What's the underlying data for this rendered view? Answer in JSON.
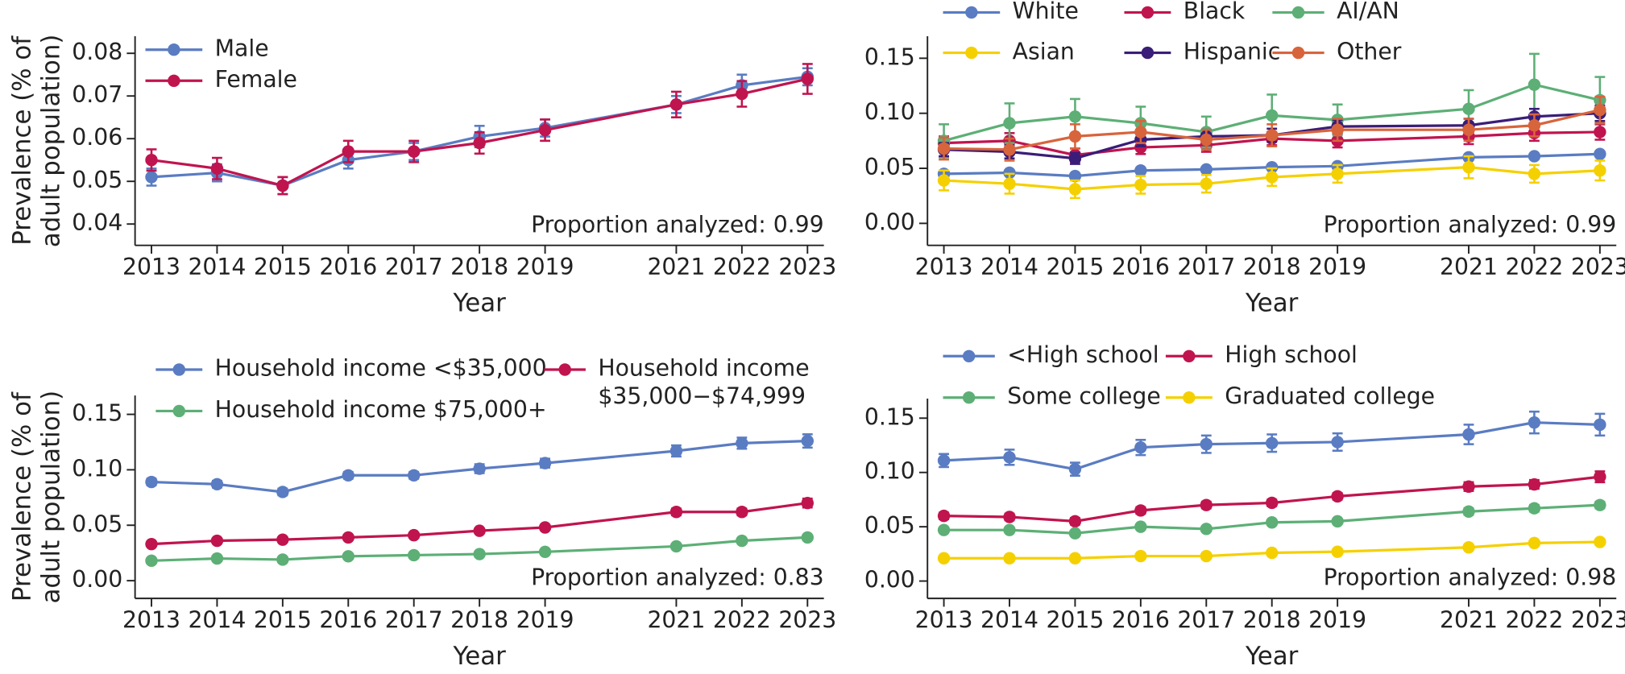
{
  "chart_data": [
    {
      "type": "line",
      "xlabel": "Year",
      "ylabel": [
        "Prevalence (% of",
        "adult population)"
      ],
      "annotation": "Proportion analyzed: 0.99",
      "x": [
        2013,
        2014,
        2015,
        2016,
        2017,
        2018,
        2019,
        2021,
        2022,
        2023
      ],
      "xlim": [
        2012.75,
        2023.25
      ],
      "xticks": [
        2013,
        2014,
        2015,
        2016,
        2017,
        2018,
        2019,
        2021,
        2022,
        2023
      ],
      "ylim": [
        0.035,
        0.084
      ],
      "yticks": [
        0.04,
        0.05,
        0.06,
        0.07,
        0.08
      ],
      "series": [
        {
          "name": "Male",
          "color": "#5a7cc2",
          "values": [
            0.051,
            0.052,
            0.049,
            0.055,
            0.057,
            0.0605,
            0.0625,
            0.068,
            0.0725,
            0.0745
          ],
          "errors": [
            0.002,
            0.002,
            0.002,
            0.002,
            0.002,
            0.0025,
            0.002,
            0.002,
            0.0025,
            0.002
          ]
        },
        {
          "name": "Female",
          "color": "#c0144f",
          "values": [
            0.055,
            0.053,
            0.049,
            0.057,
            0.057,
            0.059,
            0.062,
            0.068,
            0.0705,
            0.074
          ],
          "errors": [
            0.0025,
            0.0025,
            0.002,
            0.0025,
            0.0025,
            0.0025,
            0.0025,
            0.003,
            0.003,
            0.0035
          ]
        }
      ]
    },
    {
      "type": "line",
      "xlabel": "Year",
      "annotation": "Proportion analyzed: 0.99",
      "x": [
        2013,
        2014,
        2015,
        2016,
        2017,
        2018,
        2019,
        2021,
        2022,
        2023
      ],
      "xlim": [
        2012.75,
        2023.25
      ],
      "xticks": [
        2013,
        2014,
        2015,
        2016,
        2017,
        2018,
        2019,
        2021,
        2022,
        2023
      ],
      "ylim": [
        -0.02,
        0.17
      ],
      "yticks": [
        {
          "value": 0,
          "label": "0.00"
        },
        0.05,
        {
          "value": 0.1,
          "label": "0.10"
        },
        0.15
      ],
      "series": [
        {
          "name": "White",
          "color": "#5a7cc2",
          "values": [
            0.045,
            0.046,
            0.043,
            0.048,
            0.049,
            0.051,
            0.052,
            0.06,
            0.061,
            0.063
          ],
          "errors": [
            0.002,
            0.002,
            0.002,
            0.002,
            0.002,
            0.002,
            0.002,
            0.002,
            0.002,
            0.002
          ]
        },
        {
          "name": "Black",
          "color": "#c0144f",
          "values": [
            0.073,
            0.075,
            0.062,
            0.069,
            0.071,
            0.077,
            0.075,
            0.079,
            0.082,
            0.083
          ],
          "errors": [
            0.006,
            0.007,
            0.006,
            0.006,
            0.006,
            0.006,
            0.006,
            0.007,
            0.007,
            0.007
          ]
        },
        {
          "name": "AI/AN",
          "color": "#5daf76",
          "values": [
            0.075,
            0.091,
            0.097,
            0.091,
            0.083,
            0.098,
            0.094,
            0.104,
            0.126,
            0.112
          ],
          "errors": [
            0.015,
            0.018,
            0.016,
            0.015,
            0.014,
            0.019,
            0.014,
            0.017,
            0.028,
            0.021
          ]
        },
        {
          "name": "Asian",
          "color": "#f5d000",
          "values": [
            0.039,
            0.036,
            0.031,
            0.035,
            0.036,
            0.042,
            0.045,
            0.051,
            0.045,
            0.048
          ],
          "errors": [
            0.009,
            0.009,
            0.008,
            0.008,
            0.008,
            0.008,
            0.008,
            0.01,
            0.008,
            0.009
          ]
        },
        {
          "name": "Hispanic",
          "color": "#3a1d78",
          "values": [
            0.067,
            0.065,
            0.059,
            0.076,
            0.079,
            0.08,
            0.088,
            0.089,
            0.097,
            0.1
          ],
          "errors": [
            0.006,
            0.006,
            0.005,
            0.006,
            0.006,
            0.006,
            0.006,
            0.006,
            0.007,
            0.007
          ]
        },
        {
          "name": "Other",
          "color": "#d8643c",
          "values": [
            0.068,
            0.067,
            0.079,
            0.083,
            0.076,
            0.08,
            0.085,
            0.085,
            0.089,
            0.103
          ],
          "errors": [
            0.01,
            0.01,
            0.011,
            0.01,
            0.009,
            0.01,
            0.01,
            0.01,
            0.01,
            0.012
          ]
        }
      ]
    },
    {
      "type": "line",
      "xlabel": "Year",
      "ylabel": [
        "Prevalence (% of",
        "adult population)"
      ],
      "annotation": "Proportion analyzed: 0.83",
      "x": [
        2013,
        2014,
        2015,
        2016,
        2017,
        2018,
        2019,
        2021,
        2022,
        2023
      ],
      "xlim": [
        2012.75,
        2023.25
      ],
      "xticks": [
        2013,
        2014,
        2015,
        2016,
        2017,
        2018,
        2019,
        2021,
        2022,
        2023
      ],
      "ylim": [
        -0.016,
        0.167
      ],
      "yticks": [
        {
          "value": 0,
          "label": "0.00"
        },
        0.05,
        {
          "value": 0.1,
          "label": "0.10"
        },
        0.15
      ],
      "series": [
        {
          "name": "Household income <$35,000",
          "color": "#5a7cc2",
          "values": [
            0.089,
            0.087,
            0.08,
            0.095,
            0.095,
            0.101,
            0.106,
            0.117,
            0.124,
            0.126
          ],
          "errors": [
            0.003,
            0.003,
            0.003,
            0.003,
            0.003,
            0.004,
            0.004,
            0.005,
            0.005,
            0.006
          ]
        },
        {
          "name": "Household income $35,000−$74,999",
          "color": "#c0144f",
          "values": [
            0.033,
            0.036,
            0.037,
            0.039,
            0.041,
            0.045,
            0.048,
            0.062,
            0.062,
            0.07
          ],
          "errors": [
            0.002,
            0.002,
            0.002,
            0.002,
            0.002,
            0.002,
            0.002,
            0.003,
            0.003,
            0.004
          ]
        },
        {
          "name": "Household income $75,000+",
          "color": "#5daf76",
          "values": [
            0.018,
            0.02,
            0.019,
            0.022,
            0.023,
            0.024,
            0.026,
            0.031,
            0.036,
            0.039
          ],
          "errors": [
            0.001,
            0.001,
            0.001,
            0.001,
            0.001,
            0.001,
            0.001,
            0.002,
            0.002,
            0.002
          ]
        }
      ]
    },
    {
      "type": "line",
      "xlabel": "Year",
      "annotation": "Proportion analyzed: 0.98",
      "x": [
        2013,
        2014,
        2015,
        2016,
        2017,
        2018,
        2019,
        2021,
        2022,
        2023
      ],
      "xlim": [
        2012.75,
        2023.25
      ],
      "xticks": [
        2013,
        2014,
        2015,
        2016,
        2017,
        2018,
        2019,
        2021,
        2022,
        2023
      ],
      "ylim": [
        -0.016,
        0.168
      ],
      "yticks": [
        {
          "value": 0,
          "label": "0.00"
        },
        0.05,
        {
          "value": 0.1,
          "label": "0.10"
        },
        0.15
      ],
      "series": [
        {
          "name": "<High school",
          "color": "#5a7cc2",
          "values": [
            0.111,
            0.114,
            0.103,
            0.123,
            0.126,
            0.127,
            0.128,
            0.135,
            0.146,
            0.144
          ],
          "errors": [
            0.006,
            0.007,
            0.006,
            0.007,
            0.008,
            0.008,
            0.008,
            0.009,
            0.01,
            0.01
          ]
        },
        {
          "name": "High school",
          "color": "#c0144f",
          "values": [
            0.06,
            0.059,
            0.055,
            0.065,
            0.07,
            0.072,
            0.078,
            0.087,
            0.089,
            0.096
          ],
          "errors": [
            0.003,
            0.003,
            0.003,
            0.003,
            0.003,
            0.003,
            0.003,
            0.004,
            0.004,
            0.005
          ]
        },
        {
          "name": "Some college",
          "color": "#5daf76",
          "values": [
            0.047,
            0.047,
            0.044,
            0.05,
            0.048,
            0.054,
            0.055,
            0.064,
            0.067,
            0.07
          ],
          "errors": [
            0.002,
            0.002,
            0.002,
            0.002,
            0.002,
            0.002,
            0.002,
            0.003,
            0.003,
            0.003
          ]
        },
        {
          "name": "Graduated college",
          "color": "#f5d000",
          "values": [
            0.021,
            0.021,
            0.021,
            0.023,
            0.023,
            0.026,
            0.027,
            0.031,
            0.035,
            0.036
          ],
          "errors": [
            0.001,
            0.001,
            0.001,
            0.001,
            0.001,
            0.001,
            0.001,
            0.002,
            0.002,
            0.002
          ]
        }
      ]
    }
  ]
}
